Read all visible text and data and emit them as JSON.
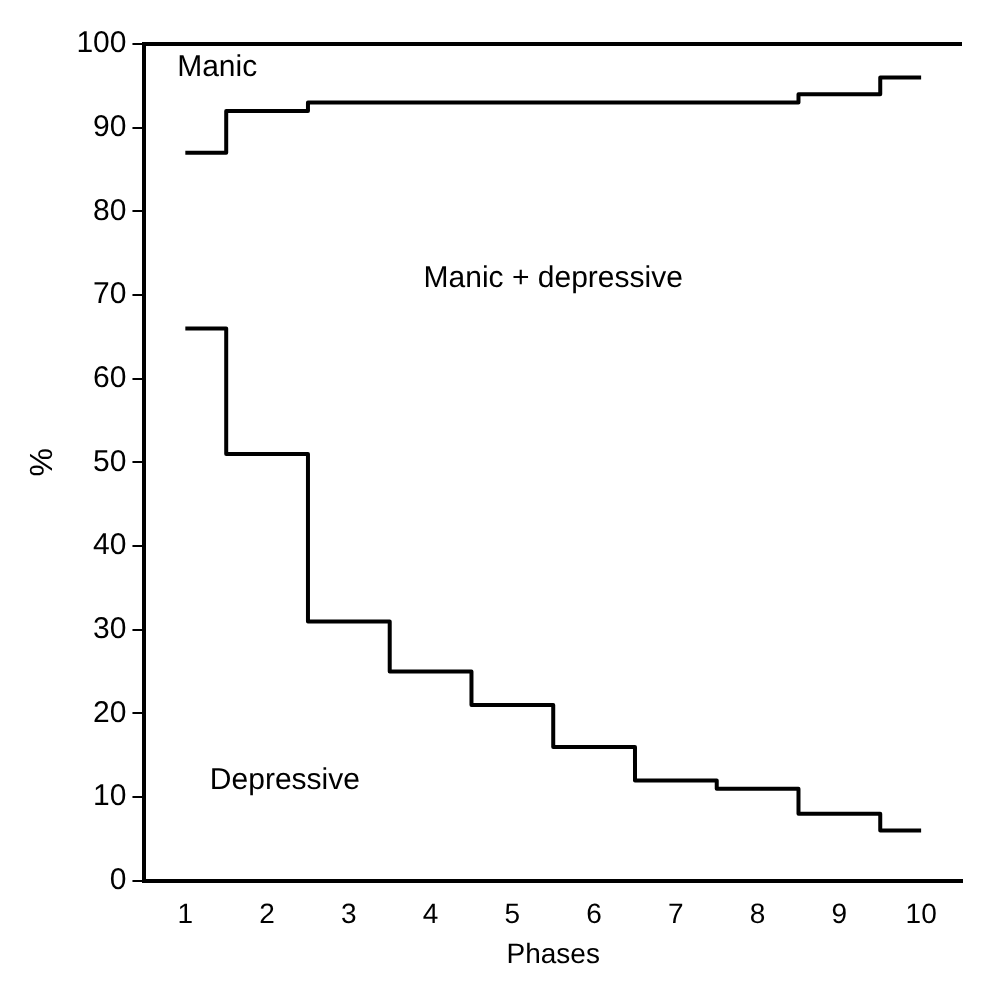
{
  "chart_data": {
    "type": "step",
    "xlabel": "Phases",
    "ylabel": "%",
    "categories": [
      "1",
      "2",
      "3",
      "4",
      "5",
      "6",
      "7",
      "8",
      "9",
      "10"
    ],
    "series": [
      {
        "color": "#000000",
        "values": [
          87,
          92,
          93,
          93,
          93,
          93,
          93,
          93,
          94,
          96
        ]
      },
      {
        "color": "#000000",
        "values": [
          66,
          51,
          31,
          25,
          21,
          16,
          12,
          11,
          8,
          6
        ]
      }
    ],
    "ylim": [
      0,
      100
    ],
    "yticks": [
      0,
      10,
      20,
      30,
      40,
      50,
      60,
      70,
      80,
      90,
      100
    ],
    "grid": false,
    "legend": false,
    "marker": "none",
    "annotations": [
      "Manic",
      "Manic + depressive",
      "Depressive"
    ]
  }
}
